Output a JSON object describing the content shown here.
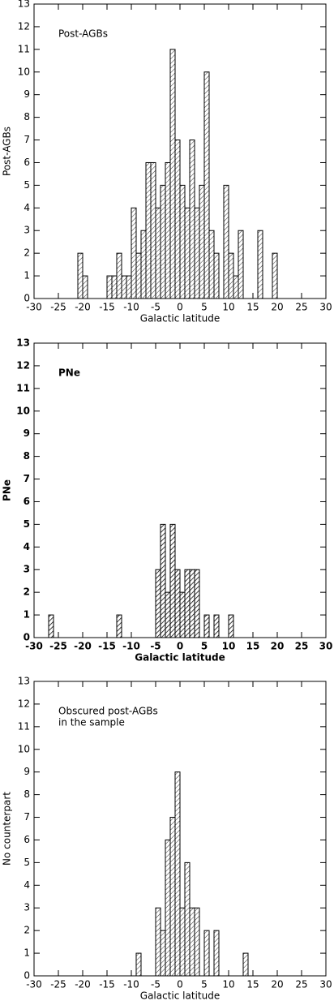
{
  "chart_data": [
    {
      "type": "histogram",
      "ylabel": "Post-AGBs",
      "xlabel": "Galactic latitude",
      "annotation": [
        "Post-AGBs"
      ],
      "bins": [
        -30,
        -29,
        -28,
        -27,
        -26,
        -25,
        -24,
        -23,
        -22,
        -21,
        -20,
        -19,
        -18,
        -17,
        -16,
        -15,
        -14,
        -13,
        -12,
        -11,
        -10,
        -9,
        -8,
        -7,
        -6,
        -5,
        -4,
        -3,
        -2,
        -1,
        0,
        1,
        2,
        3,
        4,
        5,
        6,
        7,
        8,
        9,
        10,
        11,
        12,
        13,
        14,
        15,
        16,
        17,
        18,
        19,
        20,
        21,
        22,
        23,
        24,
        25,
        26,
        27,
        28,
        29,
        30
      ],
      "values": [
        0,
        0,
        0,
        0,
        0,
        0,
        0,
        0,
        0,
        2,
        1,
        0,
        0,
        0,
        0,
        1,
        1,
        2,
        1,
        1,
        4,
        2,
        3,
        6,
        6,
        4,
        5,
        6,
        11,
        7,
        5,
        4,
        7,
        4,
        5,
        10,
        3,
        2,
        0,
        5,
        2,
        1,
        3,
        0,
        0,
        0,
        3,
        0,
        0,
        2,
        0,
        0,
        0,
        0,
        0,
        0,
        0,
        0,
        0,
        0
      ],
      "color": "#000000",
      "xlim": [
        -30,
        30
      ],
      "ylim": [
        0,
        13
      ],
      "xticks": [
        -30,
        -25,
        -20,
        -15,
        -10,
        -5,
        0,
        5,
        10,
        15,
        20,
        25,
        30
      ],
      "yticks": [
        0,
        1,
        2,
        3,
        4,
        5,
        6,
        7,
        8,
        9,
        10,
        11,
        12,
        13
      ]
    },
    {
      "type": "histogram",
      "ylabel": "PNe",
      "xlabel": "Galactic latitude",
      "annotation": [
        "PNe"
      ],
      "bins": [
        -30,
        -29,
        -28,
        -27,
        -26,
        -25,
        -24,
        -23,
        -22,
        -21,
        -20,
        -19,
        -18,
        -17,
        -16,
        -15,
        -14,
        -13,
        -12,
        -11,
        -10,
        -9,
        -8,
        -7,
        -6,
        -5,
        -4,
        -3,
        -2,
        -1,
        0,
        1,
        2,
        3,
        4,
        5,
        6,
        7,
        8,
        9,
        10,
        11,
        12,
        13,
        14,
        15,
        16,
        17,
        18,
        19,
        20,
        21,
        22,
        23,
        24,
        25,
        26,
        27,
        28,
        29,
        30
      ],
      "values": [
        0,
        0,
        0,
        1,
        0,
        0,
        0,
        0,
        0,
        0,
        0,
        0,
        0,
        0,
        0,
        0,
        0,
        1,
        0,
        0,
        0,
        0,
        0,
        0,
        0,
        3,
        5,
        2,
        5,
        3,
        2,
        3,
        3,
        3,
        0,
        1,
        0,
        1,
        0,
        0,
        1,
        0,
        0,
        0,
        0,
        0,
        0,
        0,
        0,
        0,
        0,
        0,
        0,
        0,
        0,
        0,
        0,
        0,
        0,
        0
      ],
      "color": "#000000",
      "xlim": [
        -30,
        30
      ],
      "ylim": [
        0,
        13
      ],
      "xticks": [
        -30,
        -25,
        -20,
        -15,
        -10,
        -5,
        0,
        5,
        10,
        15,
        20,
        25,
        30
      ],
      "yticks": [
        0,
        1,
        2,
        3,
        4,
        5,
        6,
        7,
        8,
        9,
        10,
        11,
        12,
        13
      ]
    },
    {
      "type": "histogram",
      "ylabel": "No counterpart",
      "xlabel": "Galactic latitude",
      "annotation": [
        "Obscured post-AGBs",
        "in the sample"
      ],
      "bins": [
        -30,
        -29,
        -28,
        -27,
        -26,
        -25,
        -24,
        -23,
        -22,
        -21,
        -20,
        -19,
        -18,
        -17,
        -16,
        -15,
        -14,
        -13,
        -12,
        -11,
        -10,
        -9,
        -8,
        -7,
        -6,
        -5,
        -4,
        -3,
        -2,
        -1,
        0,
        1,
        2,
        3,
        4,
        5,
        6,
        7,
        8,
        9,
        10,
        11,
        12,
        13,
        14,
        15,
        16,
        17,
        18,
        19,
        20,
        21,
        22,
        23,
        24,
        25,
        26,
        27,
        28,
        29,
        30
      ],
      "values": [
        0,
        0,
        0,
        0,
        0,
        0,
        0,
        0,
        0,
        0,
        0,
        0,
        0,
        0,
        0,
        0,
        0,
        0,
        0,
        0,
        0,
        1,
        0,
        0,
        0,
        3,
        2,
        6,
        7,
        9,
        3,
        5,
        3,
        3,
        0,
        2,
        0,
        2,
        0,
        0,
        0,
        0,
        0,
        1,
        0,
        0,
        0,
        0,
        0,
        0,
        0,
        0,
        0,
        0,
        0,
        0,
        0,
        0,
        0,
        0
      ],
      "color": "#000000",
      "xlim": [
        -30,
        30
      ],
      "ylim": [
        0,
        13
      ],
      "xticks": [
        -30,
        -25,
        -20,
        -15,
        -10,
        -5,
        0,
        5,
        10,
        15,
        20,
        25,
        30
      ],
      "yticks": [
        0,
        1,
        2,
        3,
        4,
        5,
        6,
        7,
        8,
        9,
        10,
        11,
        12,
        13
      ]
    }
  ]
}
